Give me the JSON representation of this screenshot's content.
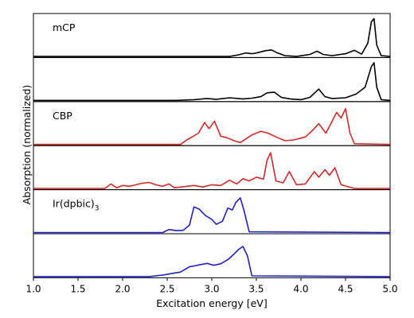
{
  "chart_data": {
    "type": "line",
    "xlabel": "Excitation energy [eV]",
    "ylabel": "Absorption (normalized)",
    "xlim": [
      1.0,
      5.0
    ],
    "xticks": [
      "1.0",
      "1.5",
      "2.0",
      "2.5",
      "3.0",
      "3.5",
      "4.0",
      "4.5",
      "5.0"
    ],
    "x_tick_values": [
      1.0,
      1.5,
      2.0,
      2.5,
      3.0,
      3.5,
      4.0,
      4.5,
      5.0
    ],
    "yticks_shown": false,
    "panels": [
      {
        "label": "mCP",
        "label_sub": "",
        "color": "#000000",
        "x": [
          1.0,
          3.2,
          3.3,
          3.38,
          3.45,
          3.52,
          3.6,
          3.67,
          3.73,
          3.82,
          3.95,
          4.1,
          4.18,
          4.25,
          4.35,
          4.5,
          4.6,
          4.68,
          4.75,
          4.79,
          4.82,
          4.85,
          4.9,
          5.0
        ],
        "y": [
          0.0,
          0.0,
          0.04,
          0.09,
          0.07,
          0.1,
          0.15,
          0.17,
          0.1,
          0.02,
          0.0,
          0.05,
          0.14,
          0.05,
          0.02,
          0.07,
          0.16,
          0.06,
          0.35,
          0.92,
          1.0,
          0.3,
          0.02,
          0.0
        ]
      },
      {
        "label": "",
        "label_sub": "",
        "color": "#000000",
        "x": [
          1.0,
          2.6,
          2.8,
          2.95,
          3.05,
          3.2,
          3.35,
          3.45,
          3.55,
          3.62,
          3.7,
          3.78,
          3.88,
          4.0,
          4.1,
          4.2,
          4.27,
          4.35,
          4.5,
          4.62,
          4.72,
          4.79,
          4.82,
          4.85,
          4.9,
          5.0
        ],
        "y": [
          0.0,
          0.0,
          0.02,
          0.05,
          0.03,
          0.07,
          0.04,
          0.06,
          0.1,
          0.2,
          0.22,
          0.08,
          0.04,
          0.02,
          0.08,
          0.3,
          0.1,
          0.05,
          0.07,
          0.17,
          0.35,
          0.9,
          1.0,
          0.35,
          0.02,
          0.0
        ]
      },
      {
        "label": "CBP",
        "label_sub": "",
        "color": "#d62728",
        "x": [
          1.0,
          2.65,
          2.72,
          2.78,
          2.85,
          2.92,
          2.97,
          3.03,
          3.1,
          3.17,
          3.25,
          3.32,
          3.45,
          3.55,
          3.63,
          3.72,
          3.82,
          3.92,
          4.05,
          4.12,
          4.2,
          4.28,
          4.35,
          4.4,
          4.45,
          4.5,
          4.55,
          4.6,
          5.0
        ],
        "y": [
          0.0,
          0.0,
          0.12,
          0.2,
          0.3,
          0.58,
          0.42,
          0.62,
          0.22,
          0.18,
          0.1,
          0.05,
          0.25,
          0.35,
          0.3,
          0.2,
          0.1,
          0.12,
          0.2,
          0.35,
          0.55,
          0.3,
          0.62,
          0.85,
          0.7,
          0.95,
          0.3,
          0.02,
          0.0
        ]
      },
      {
        "label": "",
        "label_sub": "",
        "color": "#d62728",
        "x": [
          1.0,
          1.8,
          1.87,
          1.93,
          2.0,
          2.08,
          2.15,
          2.22,
          2.3,
          2.37,
          2.45,
          2.52,
          2.58,
          2.8,
          2.9,
          3.0,
          3.1,
          3.2,
          3.28,
          3.35,
          3.42,
          3.5,
          3.58,
          3.62,
          3.66,
          3.72,
          3.8,
          3.87,
          3.95,
          4.05,
          4.15,
          4.2,
          4.27,
          4.32,
          4.38,
          4.45,
          4.6,
          5.0
        ],
        "y": [
          0.0,
          0.0,
          0.12,
          0.02,
          0.08,
          0.06,
          0.1,
          0.14,
          0.16,
          0.1,
          0.06,
          0.12,
          0.02,
          0.08,
          0.04,
          0.1,
          0.08,
          0.22,
          0.12,
          0.26,
          0.2,
          0.3,
          0.25,
          0.75,
          0.95,
          0.2,
          0.15,
          0.45,
          0.1,
          0.12,
          0.45,
          0.3,
          0.5,
          0.35,
          0.55,
          0.1,
          0.0,
          0.0
        ]
      },
      {
        "label": "Ir(dpbic)",
        "label_sub": "3",
        "color": "#1f1fc9",
        "x": [
          1.0,
          2.45,
          2.52,
          2.6,
          2.68,
          2.75,
          2.8,
          2.86,
          2.93,
          3.0,
          3.05,
          3.12,
          3.18,
          3.23,
          3.27,
          3.32,
          3.36,
          3.42,
          5.0
        ],
        "y": [
          0.0,
          0.0,
          0.08,
          0.05,
          0.06,
          0.2,
          0.68,
          0.62,
          0.45,
          0.35,
          0.22,
          0.3,
          0.65,
          0.6,
          0.8,
          0.92,
          0.6,
          0.02,
          0.0
        ]
      },
      {
        "label": "",
        "label_sub": "",
        "color": "#1f1fc9",
        "x": [
          1.0,
          2.3,
          2.45,
          2.55,
          2.65,
          2.75,
          2.8,
          2.88,
          2.95,
          3.02,
          3.1,
          3.18,
          3.25,
          3.3,
          3.35,
          3.4,
          3.45,
          5.0
        ],
        "y": [
          0.0,
          0.0,
          0.04,
          0.08,
          0.12,
          0.26,
          0.28,
          0.32,
          0.35,
          0.3,
          0.34,
          0.45,
          0.6,
          0.72,
          0.8,
          0.55,
          0.02,
          0.0
        ]
      }
    ]
  }
}
